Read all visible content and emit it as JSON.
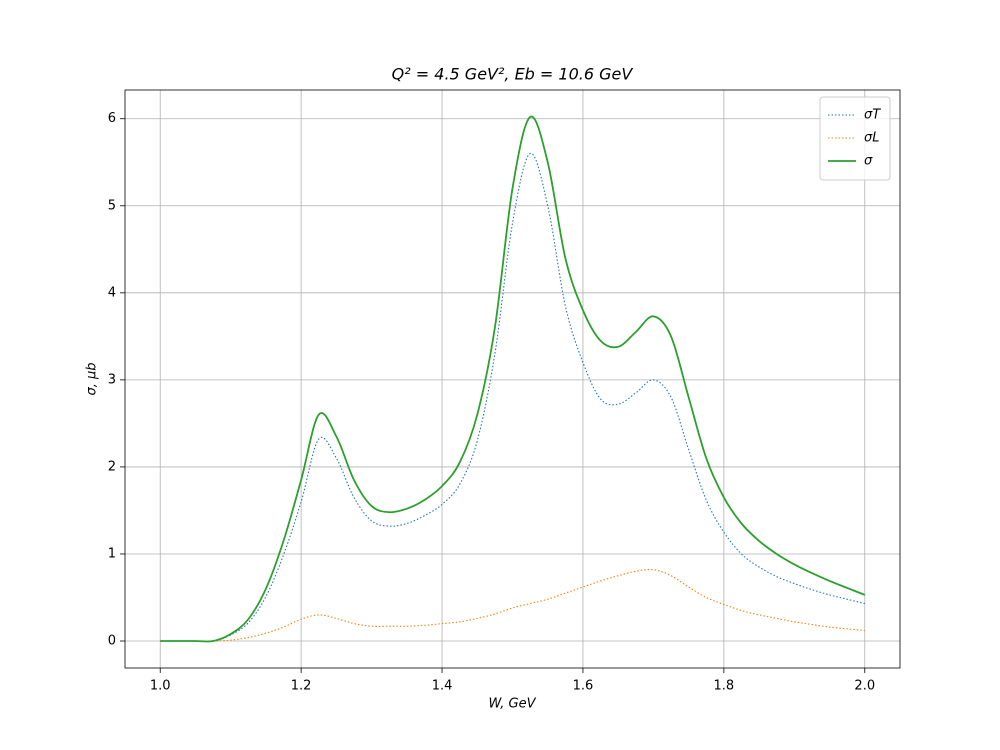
{
  "chart_data": {
    "type": "line",
    "title": "Q² = 4.5 GeV²,  Eb = 10.6 GeV",
    "x_label": "W, GeV",
    "y_label": "σ, μb",
    "x": [
      1.0,
      1.025,
      1.05,
      1.075,
      1.1,
      1.125,
      1.15,
      1.175,
      1.2,
      1.225,
      1.25,
      1.275,
      1.3,
      1.325,
      1.35,
      1.375,
      1.4,
      1.425,
      1.45,
      1.475,
      1.5,
      1.525,
      1.55,
      1.575,
      1.6,
      1.625,
      1.65,
      1.675,
      1.7,
      1.725,
      1.75,
      1.775,
      1.8,
      1.825,
      1.85,
      1.875,
      1.9,
      1.925,
      1.95,
      1.975,
      2.0
    ],
    "series": [
      {
        "name": "σT",
        "color": "#1f77b4",
        "linestyle": "dotted",
        "values": [
          0,
          0,
          0,
          0,
          0.07,
          0.21,
          0.51,
          0.99,
          1.6,
          2.32,
          2.1,
          1.65,
          1.38,
          1.32,
          1.35,
          1.44,
          1.57,
          1.8,
          2.3,
          3.3,
          4.8,
          5.6,
          5.0,
          3.85,
          3.2,
          2.78,
          2.72,
          2.85,
          3.0,
          2.8,
          2.2,
          1.62,
          1.25,
          1.0,
          0.85,
          0.74,
          0.66,
          0.59,
          0.53,
          0.48,
          0.43
        ]
      },
      {
        "name": "σL",
        "color": "#ff7f0e",
        "linestyle": "dotted",
        "values": [
          0,
          0,
          0,
          0,
          0.01,
          0.04,
          0.09,
          0.16,
          0.25,
          0.3,
          0.26,
          0.2,
          0.17,
          0.17,
          0.17,
          0.18,
          0.2,
          0.22,
          0.26,
          0.31,
          0.38,
          0.43,
          0.48,
          0.55,
          0.62,
          0.69,
          0.75,
          0.8,
          0.82,
          0.75,
          0.62,
          0.5,
          0.42,
          0.35,
          0.3,
          0.26,
          0.22,
          0.19,
          0.16,
          0.14,
          0.12
        ]
      },
      {
        "name": "σ",
        "color": "#2ca02c",
        "linestyle": "solid",
        "values": [
          0,
          0,
          0,
          0,
          0.08,
          0.25,
          0.6,
          1.15,
          1.85,
          2.6,
          2.35,
          1.85,
          1.55,
          1.48,
          1.52,
          1.62,
          1.78,
          2.05,
          2.6,
          3.6,
          5.2,
          6.02,
          5.5,
          4.4,
          3.8,
          3.45,
          3.38,
          3.55,
          3.73,
          3.5,
          2.8,
          2.1,
          1.65,
          1.35,
          1.15,
          1.0,
          0.88,
          0.78,
          0.69,
          0.61,
          0.53
        ]
      }
    ],
    "xlim": [
      0.95,
      2.05
    ],
    "ylim": [
      -0.31,
      6.33
    ],
    "xticks": [
      {
        "value": 1.0,
        "label": "1.0"
      },
      {
        "value": 1.2,
        "label": "1.2"
      },
      {
        "value": 1.4,
        "label": "1.4"
      },
      {
        "value": 1.6,
        "label": "1.6"
      },
      {
        "value": 1.8,
        "label": "1.8"
      },
      {
        "value": 2.0,
        "label": "2.0"
      }
    ],
    "yticks": [
      0,
      1,
      2,
      3,
      4,
      5,
      6
    ],
    "grid": true,
    "legend": "upper-right"
  }
}
